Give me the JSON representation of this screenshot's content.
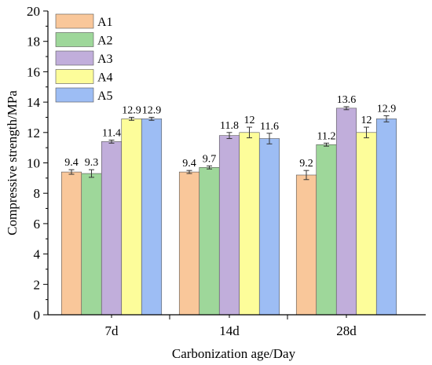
{
  "chart_data": {
    "type": "bar",
    "categories": [
      "7d",
      "14d",
      "28d"
    ],
    "series": [
      {
        "name": "A1",
        "color": "#F9C79A",
        "values": [
          9.4,
          9.4,
          9.2
        ],
        "labels": [
          "9.4",
          "9.4",
          "9.2"
        ],
        "errors": [
          0.15,
          0.1,
          0.3
        ]
      },
      {
        "name": "A2",
        "color": "#9ED79A",
        "values": [
          9.3,
          9.7,
          11.2
        ],
        "labels": [
          "9.3",
          "9.7",
          "11.2"
        ],
        "errors": [
          0.25,
          0.1,
          0.1
        ]
      },
      {
        "name": "A3",
        "color": "#C1AEDB",
        "values": [
          11.4,
          11.8,
          13.6
        ],
        "labels": [
          "11.4",
          "11.8",
          "13.6"
        ],
        "errors": [
          0.1,
          0.2,
          0.1
        ]
      },
      {
        "name": "A4",
        "color": "#FDFD9A",
        "values": [
          12.9,
          12.0,
          12.0
        ],
        "labels": [
          "12.9",
          "12",
          "12"
        ],
        "errors": [
          0.1,
          0.35,
          0.35
        ]
      },
      {
        "name": "A5",
        "color": "#9DBDF4",
        "values": [
          12.9,
          11.6,
          12.9
        ],
        "labels": [
          "12.9",
          "11.6",
          "12.9"
        ],
        "errors": [
          0.1,
          0.35,
          0.2
        ]
      }
    ],
    "title": "",
    "xlabel": "Carbonization age/Day",
    "ylabel": "Compressive strength/MPa",
    "ylim": [
      0,
      20
    ],
    "yticks": [
      "0",
      "2",
      "4",
      "6",
      "8",
      "10",
      "12",
      "14",
      "16",
      "18",
      "20"
    ],
    "grid": false,
    "legend_position": "top-left"
  }
}
